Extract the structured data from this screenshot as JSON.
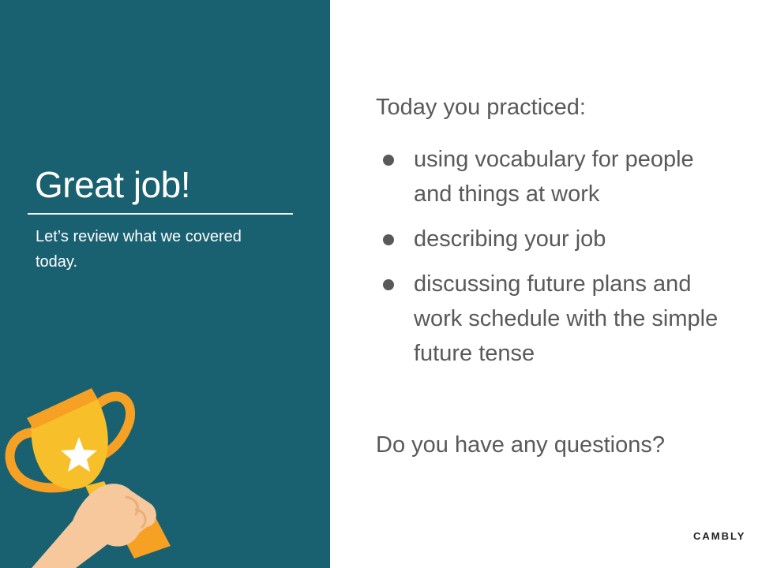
{
  "left": {
    "title": "Great job!",
    "subtitle": "Let’s review what we covered today."
  },
  "right": {
    "intro": "Today you practiced:",
    "bullets": [
      "using vocabulary for people and things at work",
      "describing your job",
      "discussing future plans and work schedule with the simple future tense"
    ],
    "question": "Do you have any questions?"
  },
  "brand": "CAMBLY",
  "colors": {
    "panel": "#196070",
    "text": "#595959",
    "trophy_gold": "#F7C02A",
    "trophy_orange": "#F6A024",
    "skin": "#F6C89C"
  },
  "icons": [
    "trophy-illustration",
    "star-icon",
    "hand-illustration"
  ]
}
